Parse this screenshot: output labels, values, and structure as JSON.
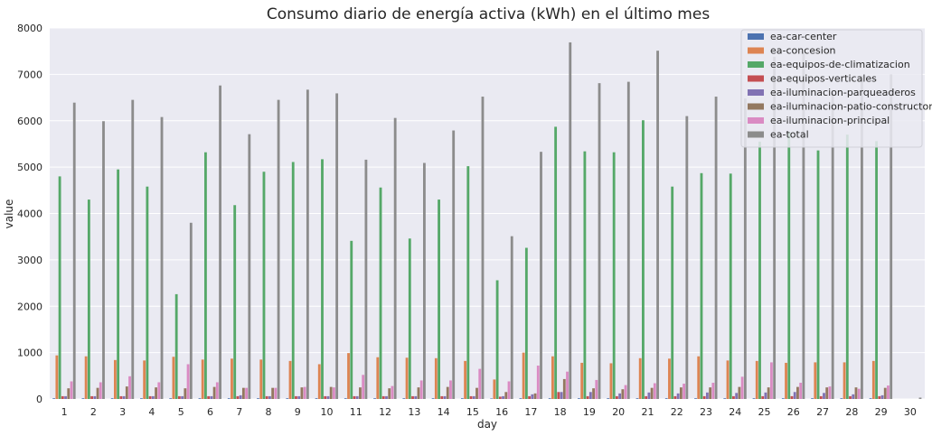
{
  "chart_data": {
    "type": "bar",
    "title": "Consumo diario de energía activa (kWh) en el último mes",
    "xlabel": "day",
    "ylabel": "value",
    "ylim": [
      0,
      8000
    ],
    "yticks": [
      0,
      1000,
      2000,
      3000,
      4000,
      5000,
      6000,
      7000,
      8000
    ],
    "grid": true,
    "legend_position": "top-right",
    "categories": [
      "1",
      "2",
      "3",
      "4",
      "5",
      "6",
      "7",
      "8",
      "9",
      "10",
      "11",
      "12",
      "13",
      "14",
      "15",
      "16",
      "17",
      "18",
      "19",
      "20",
      "21",
      "22",
      "23",
      "24",
      "25",
      "26",
      "27",
      "28",
      "29",
      "30"
    ],
    "series": [
      {
        "name": "ea-car-center",
        "color": "#4c72b0",
        "values": [
          15,
          15,
          15,
          15,
          15,
          15,
          15,
          15,
          15,
          15,
          15,
          15,
          15,
          15,
          15,
          10,
          15,
          15,
          15,
          15,
          15,
          15,
          15,
          15,
          15,
          15,
          15,
          15,
          15,
          0
        ]
      },
      {
        "name": "ea-concesion",
        "color": "#dd8452",
        "values": [
          940,
          920,
          840,
          830,
          910,
          850,
          870,
          850,
          820,
          750,
          990,
          900,
          890,
          880,
          820,
          420,
          1000,
          920,
          780,
          770,
          880,
          870,
          920,
          830,
          820,
          780,
          790,
          790,
          820,
          0
        ]
      },
      {
        "name": "ea-equipos-de-climatizacion",
        "color": "#55a868",
        "values": [
          4800,
          4300,
          4950,
          4580,
          2260,
          5320,
          4180,
          4900,
          5110,
          5170,
          3410,
          4560,
          3460,
          4300,
          5020,
          2560,
          3260,
          5870,
          5340,
          5320,
          6010,
          4580,
          4870,
          4860,
          5550,
          5760,
          5360,
          5700,
          5560,
          0
        ]
      },
      {
        "name": "ea-equipos-verticales",
        "color": "#c44e52",
        "values": [
          60,
          60,
          60,
          60,
          60,
          60,
          60,
          60,
          60,
          60,
          60,
          60,
          60,
          60,
          60,
          50,
          60,
          150,
          60,
          60,
          60,
          60,
          60,
          60,
          60,
          60,
          60,
          60,
          60,
          0
        ]
      },
      {
        "name": "ea-iluminacion-parqueaderos",
        "color": "#8172b3",
        "values": [
          60,
          60,
          60,
          60,
          60,
          60,
          80,
          60,
          60,
          60,
          60,
          60,
          60,
          60,
          60,
          60,
          100,
          150,
          150,
          120,
          140,
          120,
          140,
          130,
          140,
          150,
          130,
          100,
          80,
          0
        ]
      },
      {
        "name": "ea-iluminacion-patio-constructor",
        "color": "#937860",
        "values": [
          230,
          240,
          270,
          250,
          230,
          260,
          240,
          240,
          250,
          260,
          250,
          230,
          250,
          260,
          240,
          150,
          120,
          430,
          230,
          210,
          240,
          250,
          250,
          260,
          250,
          260,
          250,
          250,
          240,
          0
        ]
      },
      {
        "name": "ea-iluminacion-principal",
        "color": "#da8bc3",
        "values": [
          380,
          360,
          490,
          360,
          750,
          360,
          240,
          240,
          260,
          250,
          520,
          280,
          400,
          400,
          650,
          380,
          720,
          590,
          410,
          300,
          340,
          330,
          350,
          480,
          790,
          350,
          270,
          220,
          290,
          0
        ]
      },
      {
        "name": "ea-total",
        "color": "#8c8c8c",
        "values": [
          6390,
          5990,
          6450,
          6080,
          3800,
          6760,
          5710,
          6450,
          6670,
          6590,
          5160,
          6060,
          5090,
          5790,
          6520,
          3510,
          5330,
          7690,
          6810,
          6840,
          7510,
          6100,
          6520,
          6480,
          7380,
          7470,
          6610,
          6970,
          7000,
          30
        ]
      }
    ]
  }
}
